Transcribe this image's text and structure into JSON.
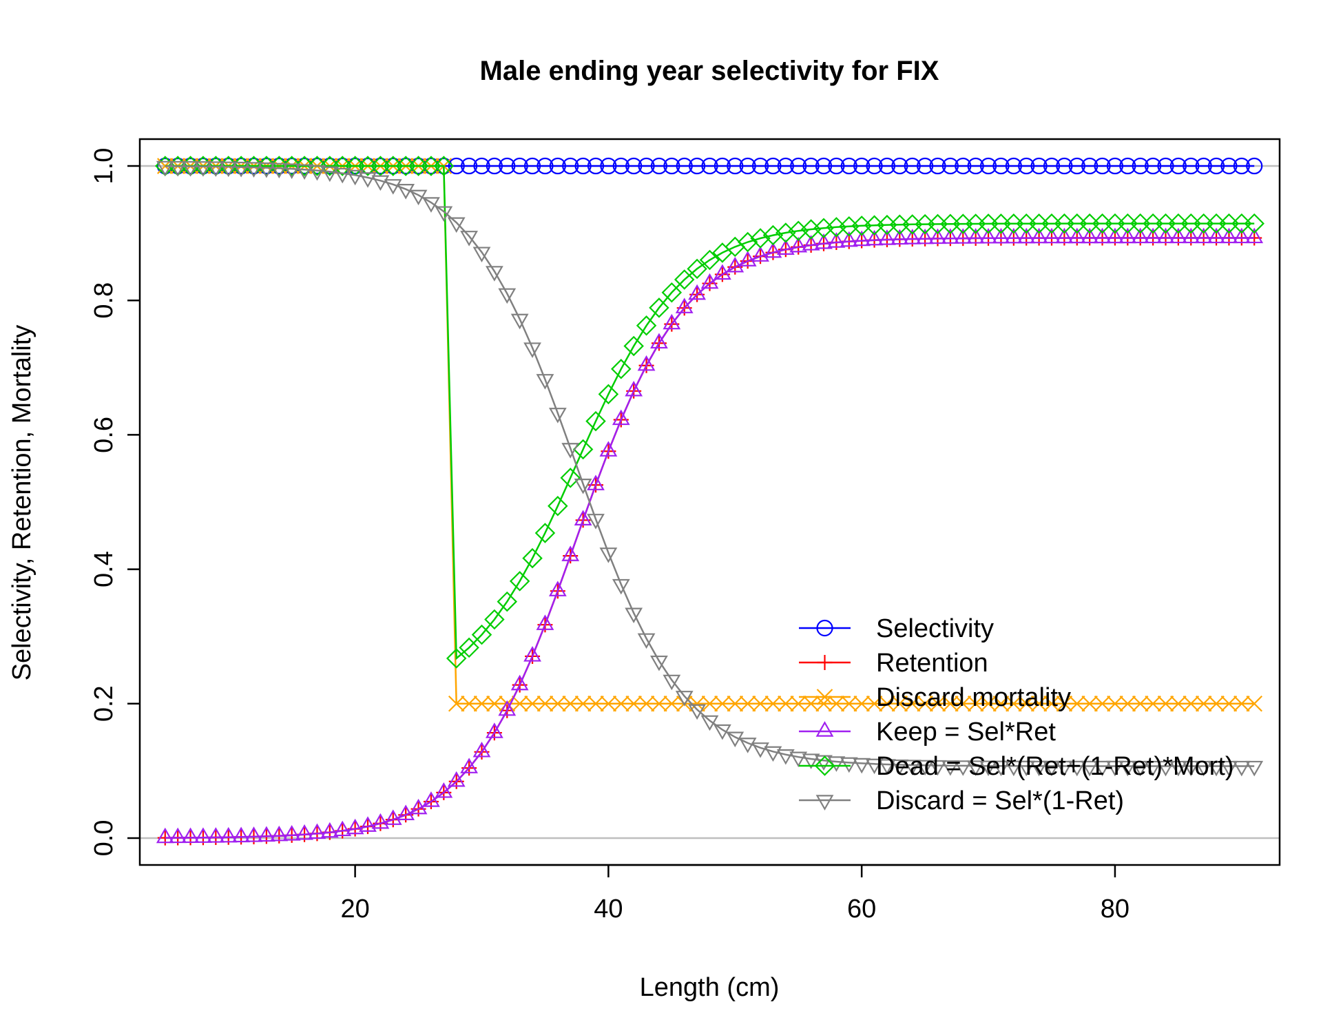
{
  "chart_data": {
    "type": "line",
    "title": "Male ending year selectivity for FIX",
    "xlabel": "Length (cm)",
    "ylabel": "Selectivity, Retention, Mortality",
    "xlim": [
      3,
      93
    ],
    "ylim": [
      -0.04,
      1.04
    ],
    "xticks": [
      20,
      40,
      60,
      80
    ],
    "yticks": [
      0.0,
      0.2,
      0.4,
      0.6,
      0.8,
      1.0
    ],
    "hlines": [
      0,
      1
    ],
    "grid": false,
    "legend_position": "bottom-right",
    "x_series": {
      "start": 5,
      "end": 91,
      "step": 1
    },
    "model": {
      "retention_inflection": 37.5,
      "retention_width": 4.2,
      "retention_asymptote": 0.893,
      "mortality_step_length": 28,
      "mortality_before": 1.0,
      "mortality_after": 0.2,
      "selectivity": 1.0
    },
    "series": [
      {
        "name": "Selectivity",
        "color": "#0000FF",
        "marker": "circle",
        "formula": "sel"
      },
      {
        "name": "Retention",
        "color": "#FF0000",
        "marker": "plus",
        "formula": "ret"
      },
      {
        "name": "Discard mortality",
        "color": "#FFA500",
        "marker": "cross",
        "formula": "mort"
      },
      {
        "name": "Keep = Sel*Ret",
        "color": "#A020F0",
        "marker": "triangle-up",
        "formula": "keep"
      },
      {
        "name": "Dead = Sel*(Ret+(1-Ret)*Mort)",
        "color": "#00CD00",
        "marker": "diamond",
        "formula": "dead"
      },
      {
        "name": "Discard = Sel*(1-Ret)",
        "color": "#808080",
        "marker": "triangle-down",
        "formula": "discard"
      }
    ]
  }
}
